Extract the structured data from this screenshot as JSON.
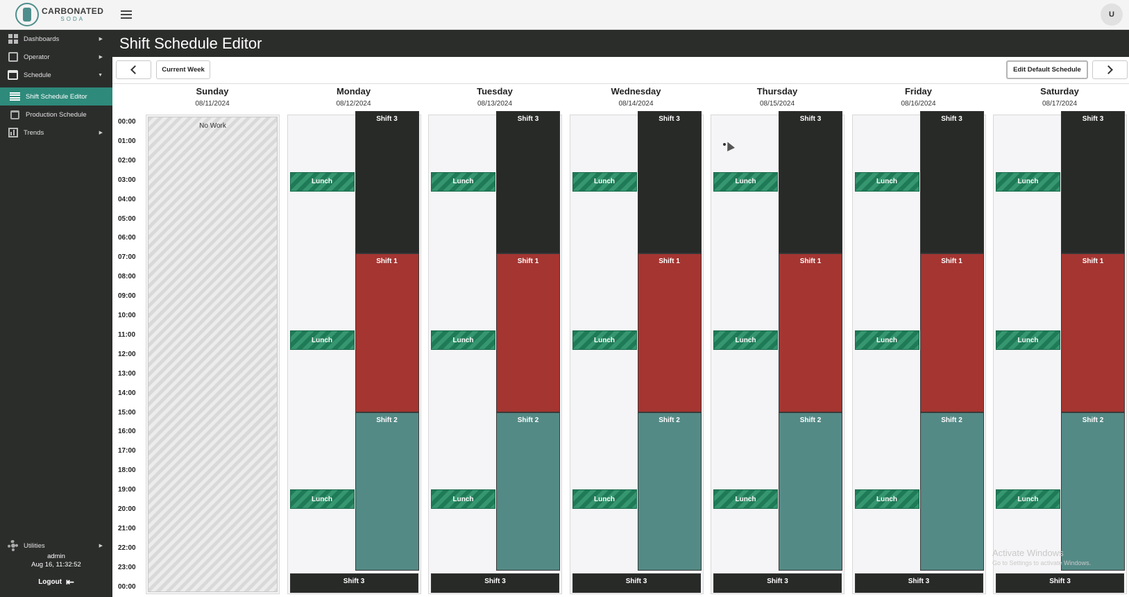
{
  "app": {
    "brand_line1": "CARBONATED",
    "brand_line2": "SODA"
  },
  "sidebar": {
    "items": [
      {
        "label": "Dashboards",
        "icon": "dashboard-icon"
      },
      {
        "label": "Operator",
        "icon": "operator-icon"
      },
      {
        "label": "Schedule",
        "icon": "calendar-icon"
      },
      {
        "label": "Shift Schedule Editor",
        "icon": "list-icon"
      },
      {
        "label": "Production Schedule",
        "icon": "calendar-icon"
      },
      {
        "label": "Trends",
        "icon": "chart-icon"
      },
      {
        "label": "Utilities",
        "icon": "gear-icon"
      }
    ],
    "user": {
      "name": "admin",
      "datetime": "Aug 16, 11:32:52",
      "logout_label": "Logout"
    }
  },
  "topbar": {
    "avatar_initial": "U"
  },
  "page": {
    "title": "Shift Schedule Editor"
  },
  "toolbar": {
    "current_week_label": "Current Week",
    "edit_default_label": "Edit Default Schedule"
  },
  "calendar": {
    "days": [
      {
        "name": "Sunday",
        "date": "08/11/2024"
      },
      {
        "name": "Monday",
        "date": "08/12/2024"
      },
      {
        "name": "Tuesday",
        "date": "08/13/2024"
      },
      {
        "name": "Wednesday",
        "date": "08/14/2024"
      },
      {
        "name": "Thursday",
        "date": "08/15/2024"
      },
      {
        "name": "Friday",
        "date": "08/16/2024"
      },
      {
        "name": "Saturday",
        "date": "08/17/2024"
      }
    ],
    "hours": [
      "00:00",
      "01:00",
      "02:00",
      "03:00",
      "04:00",
      "05:00",
      "06:00",
      "07:00",
      "08:00",
      "09:00",
      "10:00",
      "11:00",
      "12:00",
      "13:00",
      "14:00",
      "15:00",
      "16:00",
      "17:00",
      "18:00",
      "19:00",
      "20:00",
      "21:00",
      "22:00",
      "23:00",
      "00:00"
    ],
    "no_work_label": "No Work",
    "lunch_label": "Lunch",
    "shifts": {
      "shift3": {
        "label": "Shift 3",
        "start": 0,
        "end": 7.2,
        "color": "#282a28"
      },
      "shift1": {
        "label": "Shift 1",
        "start": 7.2,
        "end": 15.4,
        "color": "#a53531"
      },
      "shift2": {
        "label": "Shift 2",
        "start": 15.4,
        "end": 23.6,
        "color": "#548a86"
      },
      "shift3_next": {
        "label": "Shift 3",
        "start": 23.6,
        "end": 24.6,
        "color": "#282a28"
      }
    },
    "lunches": [
      3.0,
      11.2,
      19.4
    ]
  },
  "overlay": {
    "watermark_title": "Activate Windows",
    "watermark_sub": "Go to Settings to activate Windows."
  }
}
